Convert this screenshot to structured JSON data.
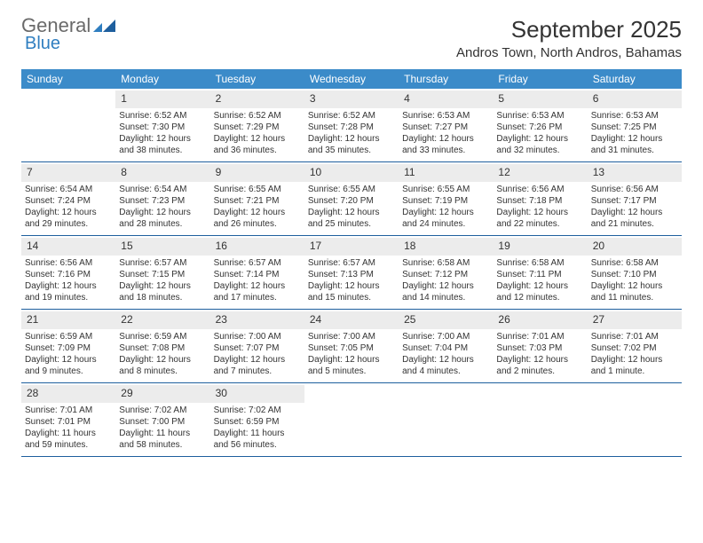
{
  "logo": {
    "general": "General",
    "blue": "Blue"
  },
  "header": {
    "title": "September 2025",
    "location": "Andros Town, North Andros, Bahamas"
  },
  "colors": {
    "header_bg": "#3b8bc9",
    "header_text": "#ffffff",
    "daynum_bg": "#ececec",
    "border": "#1e5f9e",
    "logo_accent": "#2f7ec0",
    "logo_text": "#6a6a6a",
    "body_text": "#333333",
    "page_bg": "#ffffff"
  },
  "dayNames": [
    "Sunday",
    "Monday",
    "Tuesday",
    "Wednesday",
    "Thursday",
    "Friday",
    "Saturday"
  ],
  "weeks": [
    [
      {
        "n": "",
        "sr": "",
        "ss": "",
        "dl": ""
      },
      {
        "n": "1",
        "sr": "Sunrise: 6:52 AM",
        "ss": "Sunset: 7:30 PM",
        "dl": "Daylight: 12 hours and 38 minutes."
      },
      {
        "n": "2",
        "sr": "Sunrise: 6:52 AM",
        "ss": "Sunset: 7:29 PM",
        "dl": "Daylight: 12 hours and 36 minutes."
      },
      {
        "n": "3",
        "sr": "Sunrise: 6:52 AM",
        "ss": "Sunset: 7:28 PM",
        "dl": "Daylight: 12 hours and 35 minutes."
      },
      {
        "n": "4",
        "sr": "Sunrise: 6:53 AM",
        "ss": "Sunset: 7:27 PM",
        "dl": "Daylight: 12 hours and 33 minutes."
      },
      {
        "n": "5",
        "sr": "Sunrise: 6:53 AM",
        "ss": "Sunset: 7:26 PM",
        "dl": "Daylight: 12 hours and 32 minutes."
      },
      {
        "n": "6",
        "sr": "Sunrise: 6:53 AM",
        "ss": "Sunset: 7:25 PM",
        "dl": "Daylight: 12 hours and 31 minutes."
      }
    ],
    [
      {
        "n": "7",
        "sr": "Sunrise: 6:54 AM",
        "ss": "Sunset: 7:24 PM",
        "dl": "Daylight: 12 hours and 29 minutes."
      },
      {
        "n": "8",
        "sr": "Sunrise: 6:54 AM",
        "ss": "Sunset: 7:23 PM",
        "dl": "Daylight: 12 hours and 28 minutes."
      },
      {
        "n": "9",
        "sr": "Sunrise: 6:55 AM",
        "ss": "Sunset: 7:21 PM",
        "dl": "Daylight: 12 hours and 26 minutes."
      },
      {
        "n": "10",
        "sr": "Sunrise: 6:55 AM",
        "ss": "Sunset: 7:20 PM",
        "dl": "Daylight: 12 hours and 25 minutes."
      },
      {
        "n": "11",
        "sr": "Sunrise: 6:55 AM",
        "ss": "Sunset: 7:19 PM",
        "dl": "Daylight: 12 hours and 24 minutes."
      },
      {
        "n": "12",
        "sr": "Sunrise: 6:56 AM",
        "ss": "Sunset: 7:18 PM",
        "dl": "Daylight: 12 hours and 22 minutes."
      },
      {
        "n": "13",
        "sr": "Sunrise: 6:56 AM",
        "ss": "Sunset: 7:17 PM",
        "dl": "Daylight: 12 hours and 21 minutes."
      }
    ],
    [
      {
        "n": "14",
        "sr": "Sunrise: 6:56 AM",
        "ss": "Sunset: 7:16 PM",
        "dl": "Daylight: 12 hours and 19 minutes."
      },
      {
        "n": "15",
        "sr": "Sunrise: 6:57 AM",
        "ss": "Sunset: 7:15 PM",
        "dl": "Daylight: 12 hours and 18 minutes."
      },
      {
        "n": "16",
        "sr": "Sunrise: 6:57 AM",
        "ss": "Sunset: 7:14 PM",
        "dl": "Daylight: 12 hours and 17 minutes."
      },
      {
        "n": "17",
        "sr": "Sunrise: 6:57 AM",
        "ss": "Sunset: 7:13 PM",
        "dl": "Daylight: 12 hours and 15 minutes."
      },
      {
        "n": "18",
        "sr": "Sunrise: 6:58 AM",
        "ss": "Sunset: 7:12 PM",
        "dl": "Daylight: 12 hours and 14 minutes."
      },
      {
        "n": "19",
        "sr": "Sunrise: 6:58 AM",
        "ss": "Sunset: 7:11 PM",
        "dl": "Daylight: 12 hours and 12 minutes."
      },
      {
        "n": "20",
        "sr": "Sunrise: 6:58 AM",
        "ss": "Sunset: 7:10 PM",
        "dl": "Daylight: 12 hours and 11 minutes."
      }
    ],
    [
      {
        "n": "21",
        "sr": "Sunrise: 6:59 AM",
        "ss": "Sunset: 7:09 PM",
        "dl": "Daylight: 12 hours and 9 minutes."
      },
      {
        "n": "22",
        "sr": "Sunrise: 6:59 AM",
        "ss": "Sunset: 7:08 PM",
        "dl": "Daylight: 12 hours and 8 minutes."
      },
      {
        "n": "23",
        "sr": "Sunrise: 7:00 AM",
        "ss": "Sunset: 7:07 PM",
        "dl": "Daylight: 12 hours and 7 minutes."
      },
      {
        "n": "24",
        "sr": "Sunrise: 7:00 AM",
        "ss": "Sunset: 7:05 PM",
        "dl": "Daylight: 12 hours and 5 minutes."
      },
      {
        "n": "25",
        "sr": "Sunrise: 7:00 AM",
        "ss": "Sunset: 7:04 PM",
        "dl": "Daylight: 12 hours and 4 minutes."
      },
      {
        "n": "26",
        "sr": "Sunrise: 7:01 AM",
        "ss": "Sunset: 7:03 PM",
        "dl": "Daylight: 12 hours and 2 minutes."
      },
      {
        "n": "27",
        "sr": "Sunrise: 7:01 AM",
        "ss": "Sunset: 7:02 PM",
        "dl": "Daylight: 12 hours and 1 minute."
      }
    ],
    [
      {
        "n": "28",
        "sr": "Sunrise: 7:01 AM",
        "ss": "Sunset: 7:01 PM",
        "dl": "Daylight: 11 hours and 59 minutes."
      },
      {
        "n": "29",
        "sr": "Sunrise: 7:02 AM",
        "ss": "Sunset: 7:00 PM",
        "dl": "Daylight: 11 hours and 58 minutes."
      },
      {
        "n": "30",
        "sr": "Sunrise: 7:02 AM",
        "ss": "Sunset: 6:59 PM",
        "dl": "Daylight: 11 hours and 56 minutes."
      },
      {
        "n": "",
        "sr": "",
        "ss": "",
        "dl": ""
      },
      {
        "n": "",
        "sr": "",
        "ss": "",
        "dl": ""
      },
      {
        "n": "",
        "sr": "",
        "ss": "",
        "dl": ""
      },
      {
        "n": "",
        "sr": "",
        "ss": "",
        "dl": ""
      }
    ]
  ]
}
